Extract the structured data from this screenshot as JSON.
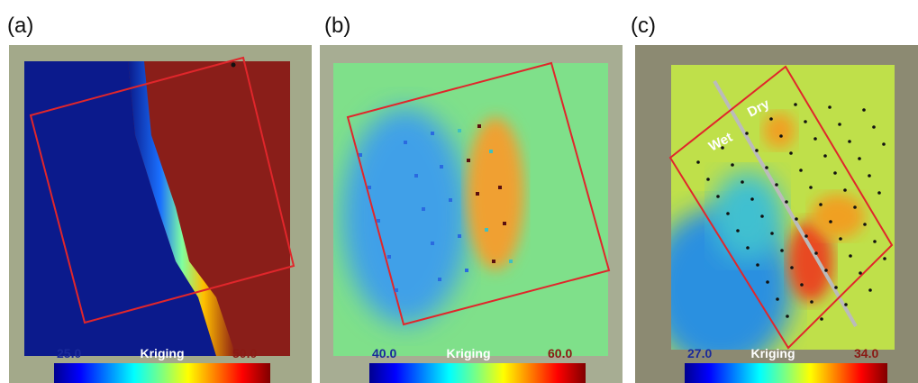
{
  "panels": [
    {
      "label": "(a)",
      "colorbar": {
        "min_label": "25.0",
        "title": "Kriging",
        "max_label": "50.0"
      }
    },
    {
      "label": "(b)",
      "colorbar": {
        "min_label": "40.0",
        "title": "Kriging",
        "max_label": "60.0"
      }
    },
    {
      "label": "(c)",
      "colorbar": {
        "min_label": "27.0",
        "title": "Kriging",
        "max_label": "34.0"
      },
      "annotations": [
        "Wet",
        "Dry"
      ]
    }
  ]
}
